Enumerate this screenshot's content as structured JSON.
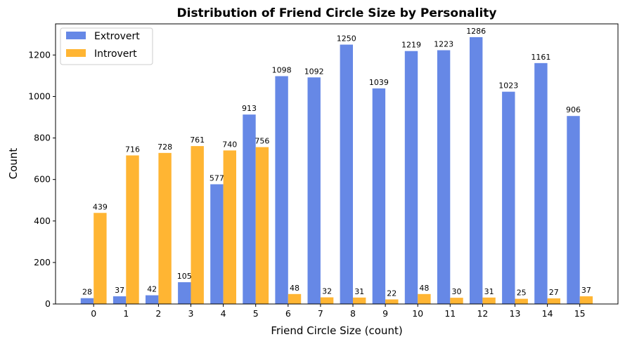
{
  "chart_data": {
    "type": "bar",
    "title": "Distribution of Friend Circle Size by Personality",
    "xlabel": "Friend Circle Size (count)",
    "ylabel": "Count",
    "categories": [
      "0",
      "1",
      "2",
      "3",
      "4",
      "5",
      "6",
      "7",
      "8",
      "9",
      "10",
      "11",
      "12",
      "13",
      "14",
      "15"
    ],
    "series": [
      {
        "name": "Extrovert",
        "color": "#6688e6",
        "values": [
          28,
          37,
          42,
          105,
          577,
          913,
          1098,
          1092,
          1250,
          1039,
          1219,
          1223,
          1286,
          1023,
          1161,
          906
        ]
      },
      {
        "name": "Introvert",
        "color": "#ffb533",
        "values": [
          439,
          716,
          728,
          761,
          740,
          756,
          48,
          32,
          31,
          22,
          48,
          30,
          31,
          25,
          27,
          37
        ]
      }
    ],
    "ylim": [
      0,
      1350
    ],
    "yticks": [
      0,
      200,
      400,
      600,
      800,
      1000,
      1200
    ],
    "grid": false,
    "legend": "top-left"
  }
}
